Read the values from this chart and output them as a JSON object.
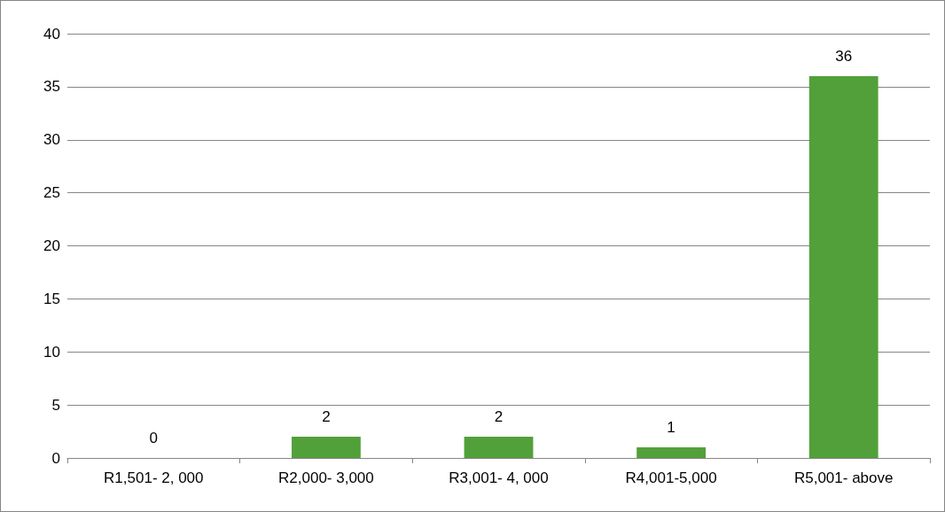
{
  "chart_data": {
    "type": "bar",
    "categories": [
      "R1,501- 2, 000",
      "R2,000- 3,000",
      "R3,001- 4, 000",
      "R4,001-5,000",
      "R5,001- above"
    ],
    "values": [
      0,
      2,
      2,
      1,
      36
    ],
    "color": "#52a03a",
    "ylim": [
      0,
      40
    ],
    "yticks": [
      0,
      5,
      10,
      15,
      20,
      25,
      30,
      35,
      40
    ],
    "grid": "y",
    "data_labels": true
  }
}
